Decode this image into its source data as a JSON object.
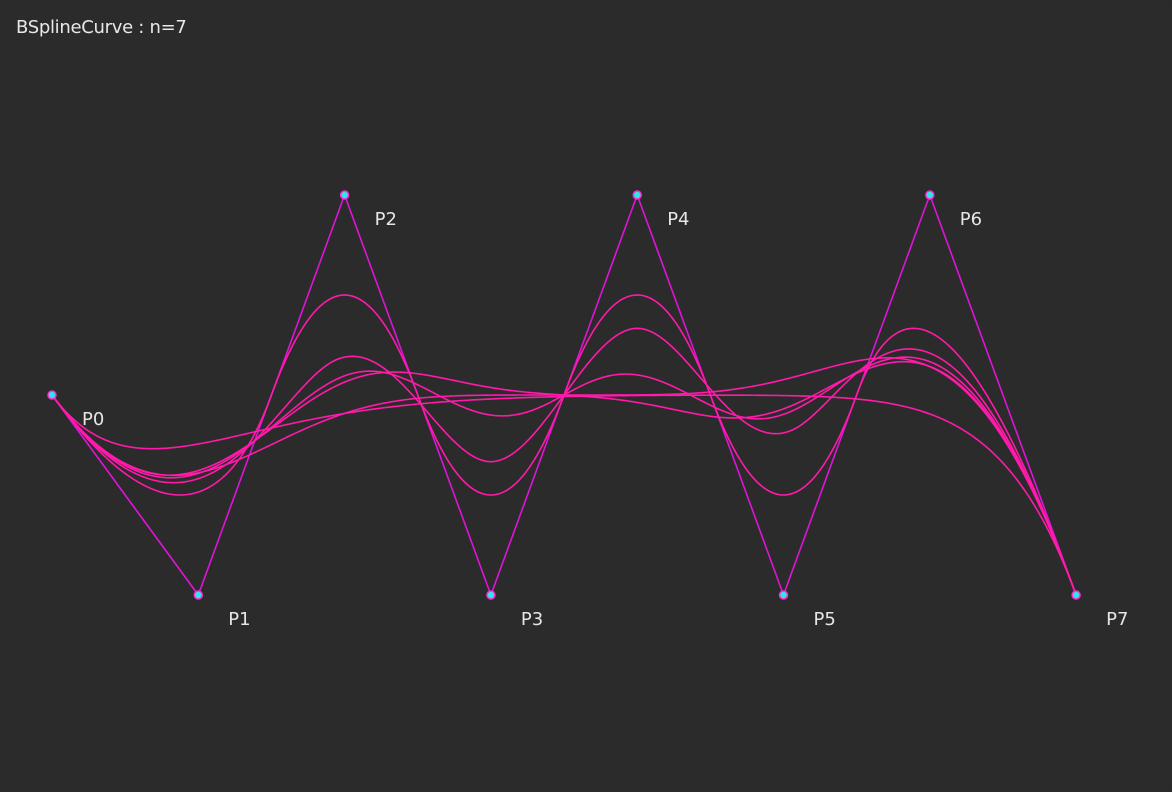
{
  "title": "BSplineCurve : n=7",
  "colors": {
    "background": "#2b2b2b",
    "curve": "#ff1aaa",
    "control_polygon": "#e014d8",
    "point_fill": "#2ee6e6",
    "point_stroke": "#ff2bd2",
    "label": "#e6e6e6"
  },
  "control_points": [
    {
      "label": "P0",
      "x": 0,
      "y": 0
    },
    {
      "label": "P1",
      "x": 1,
      "y": -1
    },
    {
      "label": "P2",
      "x": 2,
      "y": 1
    },
    {
      "label": "P3",
      "x": 3,
      "y": -1
    },
    {
      "label": "P4",
      "x": 4,
      "y": 1
    },
    {
      "label": "P5",
      "x": 5,
      "y": -1
    },
    {
      "label": "P6",
      "x": 6,
      "y": 1
    },
    {
      "label": "P7",
      "x": 7,
      "y": -1
    }
  ],
  "curve_degrees": [
    1,
    2,
    3,
    4,
    5,
    6,
    7
  ]
}
